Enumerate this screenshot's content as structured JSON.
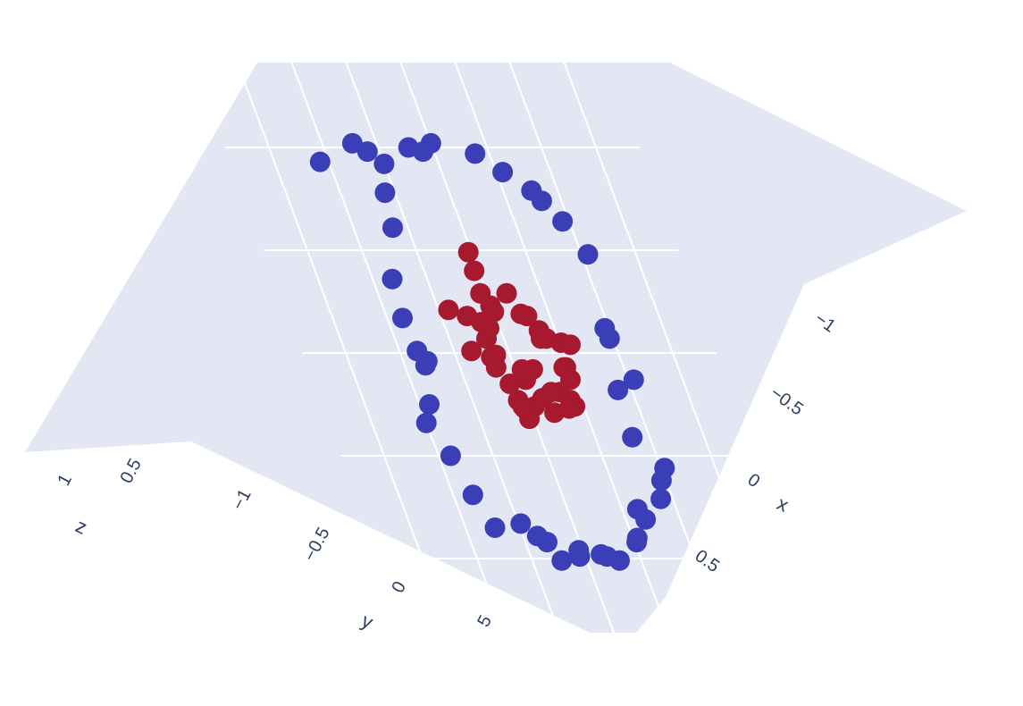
{
  "chart_data": {
    "type": "scatter",
    "projection": "3d",
    "axes": {
      "x": {
        "title": "x",
        "ticks": [
          "−1",
          "−0.5",
          "0",
          "0.5"
        ]
      },
      "y": {
        "title": "y",
        "ticks": [
          "−1",
          "−0.5",
          "0",
          "5"
        ]
      },
      "z": {
        "title": "z",
        "ticks": [
          "1",
          "0.5"
        ]
      }
    },
    "colors": {
      "outer": "#3a3fb8",
      "inner": "#a6192e",
      "plane": "#e2e7f3",
      "grid": "#ffffff"
    },
    "series": [
      {
        "color": "#3a3fb8",
        "points": [
          [
            -1.08,
            -0.93
          ],
          [
            -0.72,
            -1.02
          ],
          [
            -0.61,
            -0.98
          ],
          [
            -0.5,
            -0.92
          ],
          [
            -0.22,
            -1.0
          ],
          [
            -0.1,
            -0.98
          ],
          [
            0.0,
            -1.02
          ],
          [
            0.37,
            -0.97
          ],
          [
            0.56,
            -0.88
          ],
          [
            0.76,
            -0.79
          ],
          [
            0.82,
            -0.74
          ],
          [
            0.94,
            -0.64
          ],
          [
            1.06,
            -0.48
          ],
          [
            0.97,
            -0.07
          ],
          [
            1.05,
            0.13
          ],
          [
            0.87,
            0.18
          ],
          [
            0.84,
            0.41
          ],
          [
            1.03,
            0.56
          ],
          [
            0.96,
            0.62
          ],
          [
            0.89,
            0.71
          ],
          [
            0.64,
            0.76
          ],
          [
            0.68,
            0.81
          ],
          [
            0.54,
            0.9
          ],
          [
            0.52,
            0.92
          ],
          [
            0.3,
            1.01
          ],
          [
            0.2,
            0.99
          ],
          [
            0.15,
            0.98
          ],
          [
            -0.04,
            0.96
          ],
          [
            -0.05,
            0.99
          ],
          [
            -0.23,
            1.01
          ],
          [
            -0.3,
            0.92
          ],
          [
            -0.37,
            0.89
          ],
          [
            -0.48,
            0.83
          ],
          [
            -0.73,
            0.85
          ],
          [
            -0.82,
            0.69
          ],
          [
            -0.89,
            0.5
          ],
          [
            -1.0,
            0.34
          ],
          [
            -0.91,
            0.25
          ],
          [
            -0.78,
            0.04
          ],
          [
            -0.81,
            0.06
          ],
          [
            -0.84,
            -0.01
          ],
          [
            -0.86,
            -0.17
          ],
          [
            -0.82,
            -0.36
          ],
          [
            -0.64,
            -0.61
          ],
          [
            -0.59,
            -0.78
          ],
          [
            0.96,
            -0.12
          ]
        ]
      },
      {
        "color": "#a6192e",
        "points": [
          [
            -0.03,
            -0.49
          ],
          [
            -0.04,
            -0.4
          ],
          [
            0.18,
            -0.29
          ],
          [
            -0.06,
            -0.29
          ],
          [
            -0.01,
            -0.23
          ],
          [
            0.24,
            -0.19
          ],
          [
            0.29,
            -0.18
          ],
          [
            0.35,
            -0.11
          ],
          [
            0.34,
            -0.07
          ],
          [
            0.39,
            -0.07
          ],
          [
            0.51,
            -0.05
          ],
          [
            0.59,
            -0.04
          ],
          [
            0.45,
            0.07
          ],
          [
            0.47,
            0.07
          ],
          [
            0.47,
            0.13
          ],
          [
            0.33,
            0.19
          ],
          [
            0.4,
            0.23
          ],
          [
            0.42,
            0.26
          ],
          [
            0.36,
            0.27
          ],
          [
            0.25,
            0.19
          ],
          [
            0.21,
            0.29
          ],
          [
            0.15,
            0.22
          ],
          [
            0.06,
            0.13
          ],
          [
            0.05,
            0.26
          ],
          [
            -0.04,
            0.32
          ],
          [
            -0.05,
            0.27
          ],
          [
            -0.08,
            0.23
          ],
          [
            -0.17,
            0.07
          ],
          [
            -0.18,
            0.02
          ],
          [
            -0.13,
            0.01
          ],
          [
            -0.15,
            0.02
          ],
          [
            -0.16,
            -0.07
          ],
          [
            -0.1,
            -0.12
          ],
          [
            -0.15,
            -0.15
          ],
          [
            -0.26,
            -0.18
          ],
          [
            -0.41,
            -0.21
          ],
          [
            -0.34,
            -0.01
          ],
          [
            -0.1,
            0.15
          ],
          [
            0.06,
            0.08
          ],
          [
            0.16,
            0.08
          ],
          [
            -0.06,
            0.26
          ],
          [
            0.0,
            -0.2
          ]
        ]
      }
    ]
  }
}
